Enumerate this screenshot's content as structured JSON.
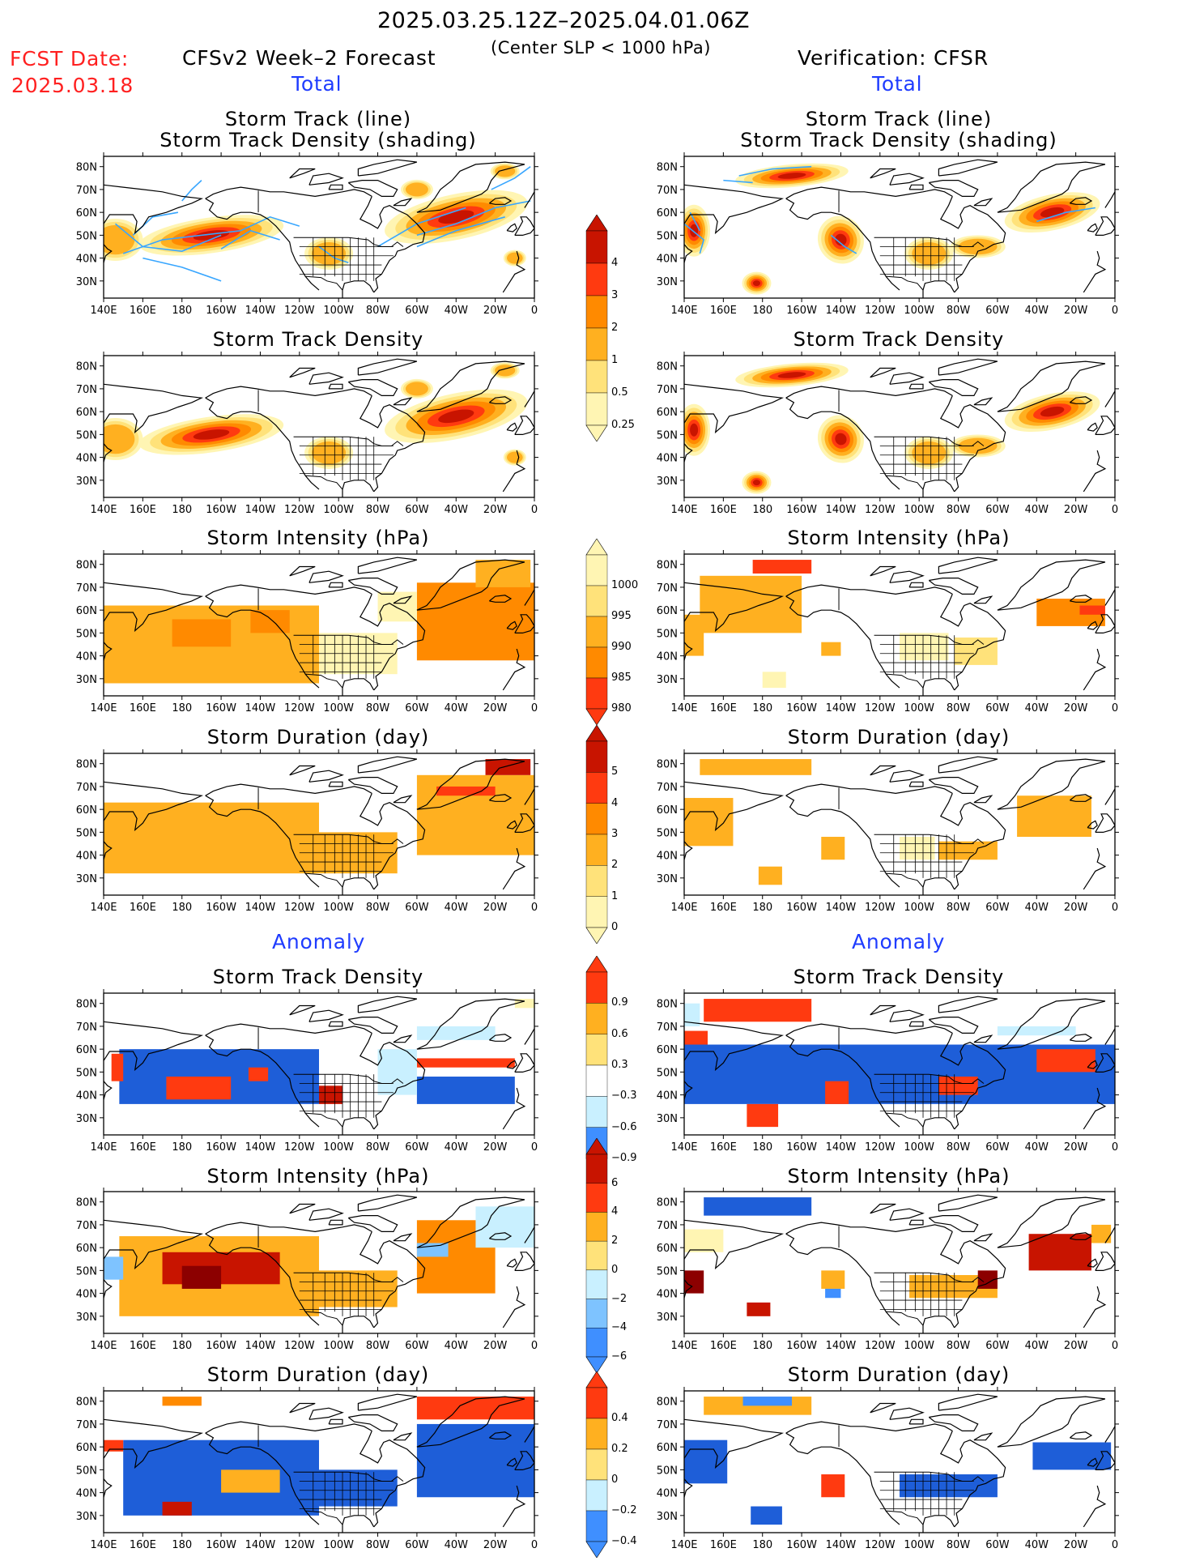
{
  "header": {
    "date_range": "2025.03.25.12Z–2025.04.01.06Z",
    "condition": "(Center SLP < 1000 hPa)",
    "fcst_label": "FCST Date:",
    "fcst_date": "2025.03.18",
    "left_title": "CFSv2 Week–2 Forecast",
    "right_title": "Verification: CFSR",
    "total_label": "Total",
    "anomaly_label": "Anomaly"
  },
  "axes": {
    "lat_labels": [
      "80N",
      "70N",
      "60N",
      "50N",
      "40N",
      "30N"
    ],
    "lon_labels": [
      "140E",
      "160E",
      "180",
      "160W",
      "140W",
      "120W",
      "100W",
      "80W",
      "60W",
      "40W",
      "20W",
      "0"
    ]
  },
  "panels": {
    "p1_line1": "Storm Track (line)",
    "p1_line2": "Storm Track Density (shading)",
    "track_density": "Storm Track Density",
    "intensity": "Storm Intensity (hPa)",
    "duration": "Storm Duration (day)"
  },
  "colorbars": {
    "density_total": [
      "4",
      "3",
      "2",
      "1",
      "0.5",
      "0.25"
    ],
    "intensity_total": [
      "1000",
      "995",
      "990",
      "985",
      "980"
    ],
    "duration_total": [
      "5",
      "4",
      "3",
      "2",
      "1",
      "0"
    ],
    "density_anom": [
      "0.9",
      "0.6",
      "0.3",
      "−0.3",
      "−0.6",
      "−0.9"
    ],
    "intensity_anom": [
      "6",
      "4",
      "2",
      "0",
      "−2",
      "−4",
      "−6"
    ],
    "duration_anom": [
      "0.4",
      "0.2",
      "0",
      "−0.2",
      "−0.4"
    ]
  },
  "colors": {
    "yellow1": "#fff5b3",
    "yellow2": "#ffe27a",
    "orange1": "#ffb020",
    "orange2": "#ff8a00",
    "red1": "#ff3a10",
    "red2": "#c81400",
    "darkred": "#8c0000",
    "lightblue": "#c9f0ff",
    "blue1": "#7ec3ff",
    "blue2": "#3f8fff",
    "blue3": "#1e5ed8",
    "track": "#38a6ff"
  }
}
